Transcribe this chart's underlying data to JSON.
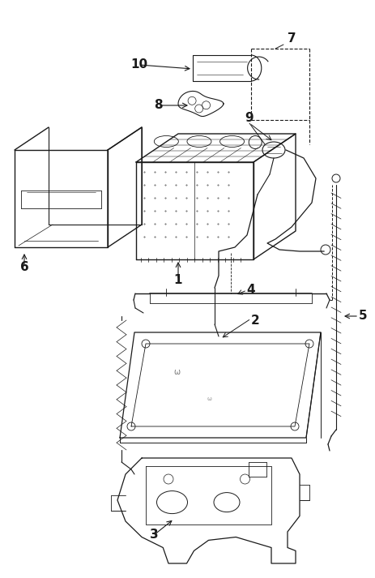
{
  "bg_color": "#ffffff",
  "line_color": "#1a1a1a",
  "fig_width": 4.64,
  "fig_height": 7.13,
  "dpi": 100,
  "label_fontsize": 11,
  "label_fontweight": "bold"
}
